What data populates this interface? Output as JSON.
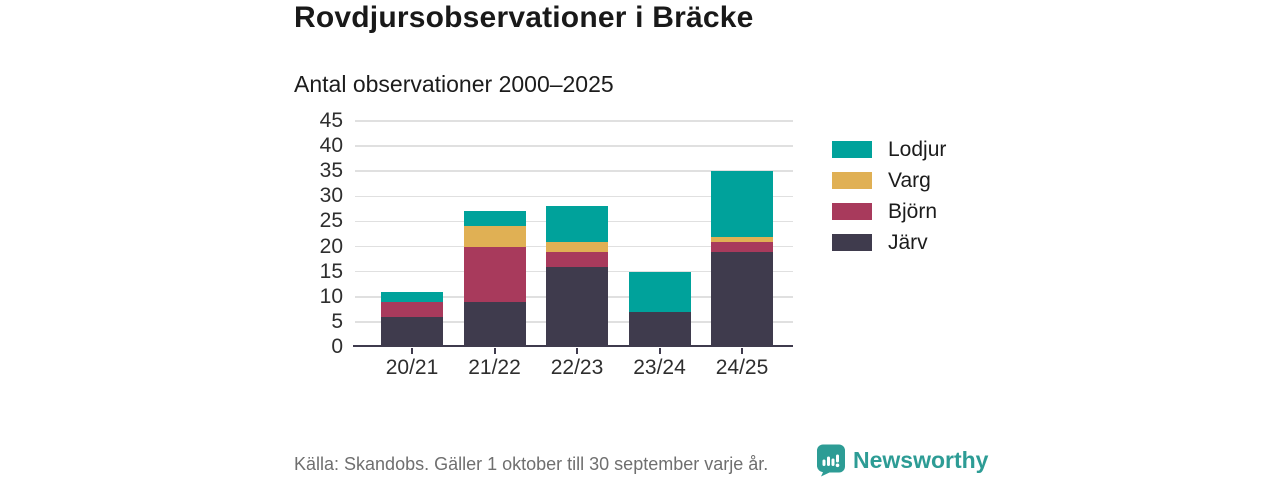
{
  "header": {
    "title": "Rovdjursobservationer i Bräcke",
    "subtitle": "Antal observationer 2000–2025"
  },
  "chart_data": {
    "type": "bar",
    "stacked": true,
    "title": "Rovdjursobservationer i Bräcke",
    "subtitle": "Antal observationer 2000–2025",
    "categories": [
      "20/21",
      "21/22",
      "22/23",
      "23/24",
      "24/25"
    ],
    "series": [
      {
        "name": "Järv",
        "color": "#3f3b4d",
        "values": [
          6,
          9,
          16,
          7,
          19
        ]
      },
      {
        "name": "Björn",
        "color": "#a83a5c",
        "values": [
          3,
          11,
          3,
          0,
          2
        ]
      },
      {
        "name": "Varg",
        "color": "#e0b054",
        "values": [
          0,
          4,
          2,
          0,
          1
        ]
      },
      {
        "name": "Lodjur",
        "color": "#00a29b",
        "values": [
          2,
          3,
          7,
          8,
          13
        ]
      }
    ],
    "legend_order": [
      "Lodjur",
      "Varg",
      "Björn",
      "Järv"
    ],
    "legend_position": "right",
    "xlabel": "",
    "ylabel": "",
    "ylim": [
      0,
      45
    ],
    "yticks": [
      0,
      5,
      10,
      15,
      20,
      25,
      30,
      35,
      40,
      45
    ],
    "grid": true
  },
  "footer": {
    "source_text": "Källa: Skandobs. Gäller 1 oktober till 30 september varje år.",
    "brand": "Newsworthy"
  },
  "colors": {
    "accent_teal": "#00a29b",
    "gold": "#e0b054",
    "maroon": "#a83a5c",
    "dark": "#3f3b4d",
    "gridline": "#e0e0e0",
    "axis": "#3f3b4d",
    "brand_teal": "#2d9c95",
    "footer_gray": "#6f6f6f"
  }
}
